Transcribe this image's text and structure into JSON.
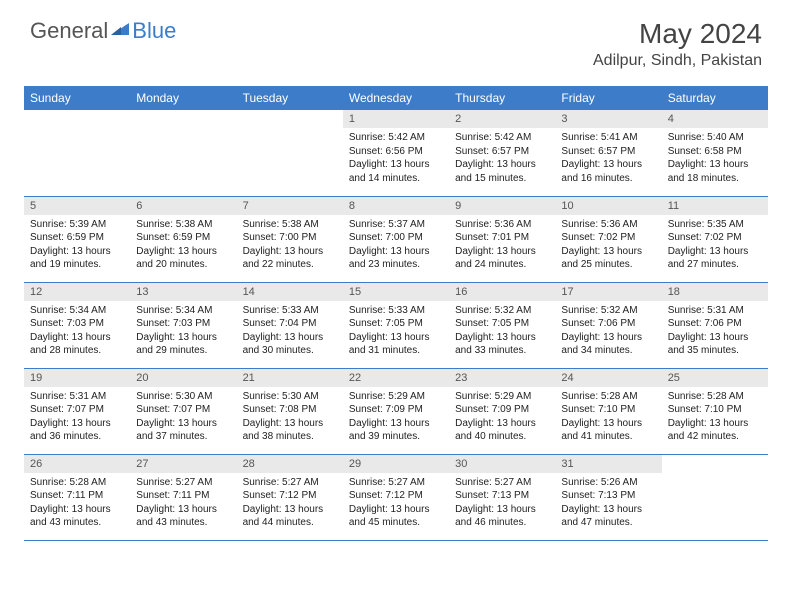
{
  "brand": {
    "word1": "General",
    "word2": "Blue"
  },
  "title": "May 2024",
  "location": "Adilpur, Sindh, Pakistan",
  "colors": {
    "header_bg": "#3d7cc9",
    "header_text": "#ffffff",
    "daynum_bg": "#e9e9e9",
    "row_border": "#3d7cc9",
    "body_text": "#222222",
    "logo_gray": "#555555",
    "logo_blue": "#3d7cc9"
  },
  "weekdays": [
    "Sunday",
    "Monday",
    "Tuesday",
    "Wednesday",
    "Thursday",
    "Friday",
    "Saturday"
  ],
  "layout": {
    "first_weekday_index": 3,
    "days_in_month": 31
  },
  "days": {
    "1": {
      "sunrise": "5:42 AM",
      "sunset": "6:56 PM",
      "daylight": "13 hours and 14 minutes."
    },
    "2": {
      "sunrise": "5:42 AM",
      "sunset": "6:57 PM",
      "daylight": "13 hours and 15 minutes."
    },
    "3": {
      "sunrise": "5:41 AM",
      "sunset": "6:57 PM",
      "daylight": "13 hours and 16 minutes."
    },
    "4": {
      "sunrise": "5:40 AM",
      "sunset": "6:58 PM",
      "daylight": "13 hours and 18 minutes."
    },
    "5": {
      "sunrise": "5:39 AM",
      "sunset": "6:59 PM",
      "daylight": "13 hours and 19 minutes."
    },
    "6": {
      "sunrise": "5:38 AM",
      "sunset": "6:59 PM",
      "daylight": "13 hours and 20 minutes."
    },
    "7": {
      "sunrise": "5:38 AM",
      "sunset": "7:00 PM",
      "daylight": "13 hours and 22 minutes."
    },
    "8": {
      "sunrise": "5:37 AM",
      "sunset": "7:00 PM",
      "daylight": "13 hours and 23 minutes."
    },
    "9": {
      "sunrise": "5:36 AM",
      "sunset": "7:01 PM",
      "daylight": "13 hours and 24 minutes."
    },
    "10": {
      "sunrise": "5:36 AM",
      "sunset": "7:02 PM",
      "daylight": "13 hours and 25 minutes."
    },
    "11": {
      "sunrise": "5:35 AM",
      "sunset": "7:02 PM",
      "daylight": "13 hours and 27 minutes."
    },
    "12": {
      "sunrise": "5:34 AM",
      "sunset": "7:03 PM",
      "daylight": "13 hours and 28 minutes."
    },
    "13": {
      "sunrise": "5:34 AM",
      "sunset": "7:03 PM",
      "daylight": "13 hours and 29 minutes."
    },
    "14": {
      "sunrise": "5:33 AM",
      "sunset": "7:04 PM",
      "daylight": "13 hours and 30 minutes."
    },
    "15": {
      "sunrise": "5:33 AM",
      "sunset": "7:05 PM",
      "daylight": "13 hours and 31 minutes."
    },
    "16": {
      "sunrise": "5:32 AM",
      "sunset": "7:05 PM",
      "daylight": "13 hours and 33 minutes."
    },
    "17": {
      "sunrise": "5:32 AM",
      "sunset": "7:06 PM",
      "daylight": "13 hours and 34 minutes."
    },
    "18": {
      "sunrise": "5:31 AM",
      "sunset": "7:06 PM",
      "daylight": "13 hours and 35 minutes."
    },
    "19": {
      "sunrise": "5:31 AM",
      "sunset": "7:07 PM",
      "daylight": "13 hours and 36 minutes."
    },
    "20": {
      "sunrise": "5:30 AM",
      "sunset": "7:07 PM",
      "daylight": "13 hours and 37 minutes."
    },
    "21": {
      "sunrise": "5:30 AM",
      "sunset": "7:08 PM",
      "daylight": "13 hours and 38 minutes."
    },
    "22": {
      "sunrise": "5:29 AM",
      "sunset": "7:09 PM",
      "daylight": "13 hours and 39 minutes."
    },
    "23": {
      "sunrise": "5:29 AM",
      "sunset": "7:09 PM",
      "daylight": "13 hours and 40 minutes."
    },
    "24": {
      "sunrise": "5:28 AM",
      "sunset": "7:10 PM",
      "daylight": "13 hours and 41 minutes."
    },
    "25": {
      "sunrise": "5:28 AM",
      "sunset": "7:10 PM",
      "daylight": "13 hours and 42 minutes."
    },
    "26": {
      "sunrise": "5:28 AM",
      "sunset": "7:11 PM",
      "daylight": "13 hours and 43 minutes."
    },
    "27": {
      "sunrise": "5:27 AM",
      "sunset": "7:11 PM",
      "daylight": "13 hours and 43 minutes."
    },
    "28": {
      "sunrise": "5:27 AM",
      "sunset": "7:12 PM",
      "daylight": "13 hours and 44 minutes."
    },
    "29": {
      "sunrise": "5:27 AM",
      "sunset": "7:12 PM",
      "daylight": "13 hours and 45 minutes."
    },
    "30": {
      "sunrise": "5:27 AM",
      "sunset": "7:13 PM",
      "daylight": "13 hours and 46 minutes."
    },
    "31": {
      "sunrise": "5:26 AM",
      "sunset": "7:13 PM",
      "daylight": "13 hours and 47 minutes."
    }
  },
  "labels": {
    "sunrise": "Sunrise:",
    "sunset": "Sunset:",
    "daylight": "Daylight:"
  }
}
